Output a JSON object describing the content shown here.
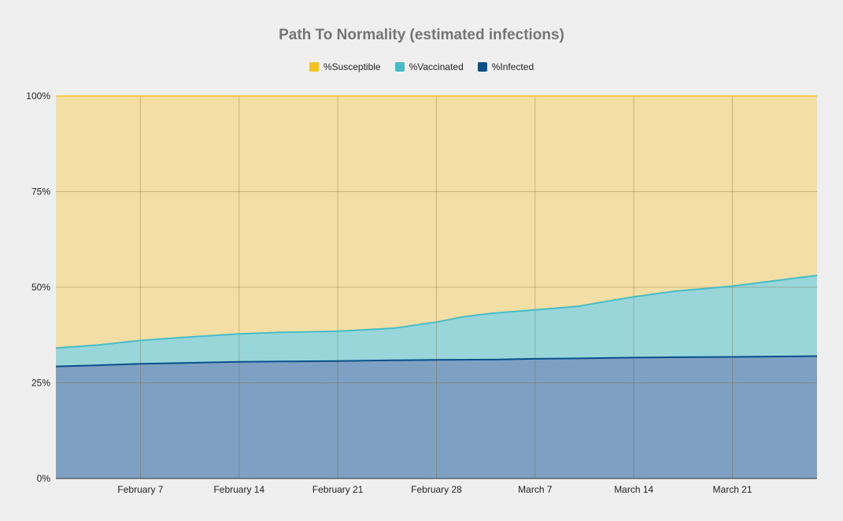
{
  "chart_data": {
    "type": "area",
    "stacked": true,
    "title": "Path To Normality (estimated infections)",
    "xlabel": "",
    "ylabel": "",
    "ylim": [
      0,
      100
    ],
    "y_ticks": [
      "0%",
      "25%",
      "50%",
      "75%",
      "100%"
    ],
    "y_tick_values": [
      0,
      25,
      50,
      75,
      100
    ],
    "x_ticks": [
      "February 7",
      "February 14",
      "February 21",
      "February 28",
      "March 7",
      "March 14",
      "March 21"
    ],
    "x_tick_dates": [
      "2021-02-07",
      "2021-02-14",
      "2021-02-21",
      "2021-02-28",
      "2021-03-07",
      "2021-03-14",
      "2021-03-21"
    ],
    "x_range": [
      "2021-02-01",
      "2021-03-27"
    ],
    "legend_position": "top",
    "grid": true,
    "series": [
      {
        "name": "%Infected",
        "color": "#0b4f8a",
        "fill": "#7ea1c3",
        "x": [
          "2021-02-01",
          "2021-02-04",
          "2021-02-07",
          "2021-02-10",
          "2021-02-14",
          "2021-02-17",
          "2021-02-21",
          "2021-02-25",
          "2021-02-28",
          "2021-03-04",
          "2021-03-07",
          "2021-03-10",
          "2021-03-14",
          "2021-03-17",
          "2021-03-21",
          "2021-03-24",
          "2021-03-27"
        ],
        "values": [
          29.3,
          29.6,
          30.0,
          30.2,
          30.5,
          30.6,
          30.7,
          30.9,
          31.0,
          31.1,
          31.3,
          31.4,
          31.6,
          31.7,
          31.8,
          31.9,
          32.0
        ]
      },
      {
        "name": "%Vaccinated",
        "color": "#46bdc6",
        "fill": "#99d6da",
        "x": [
          "2021-02-01",
          "2021-02-04",
          "2021-02-07",
          "2021-02-10",
          "2021-02-14",
          "2021-02-17",
          "2021-02-21",
          "2021-02-25",
          "2021-02-28",
          "2021-03-02",
          "2021-03-04",
          "2021-03-07",
          "2021-03-10",
          "2021-03-14",
          "2021-03-17",
          "2021-03-21",
          "2021-03-24",
          "2021-03-27"
        ],
        "values": [
          4.8,
          5.3,
          6.1,
          6.7,
          7.3,
          7.6,
          7.8,
          8.4,
          9.9,
          11.3,
          12.1,
          12.8,
          13.6,
          15.9,
          17.3,
          18.5,
          19.8,
          21.1
        ]
      },
      {
        "name": "%Susceptible",
        "color": "#f4c31f",
        "fill": "#f3dfa6",
        "top_fixed": 100
      }
    ]
  }
}
